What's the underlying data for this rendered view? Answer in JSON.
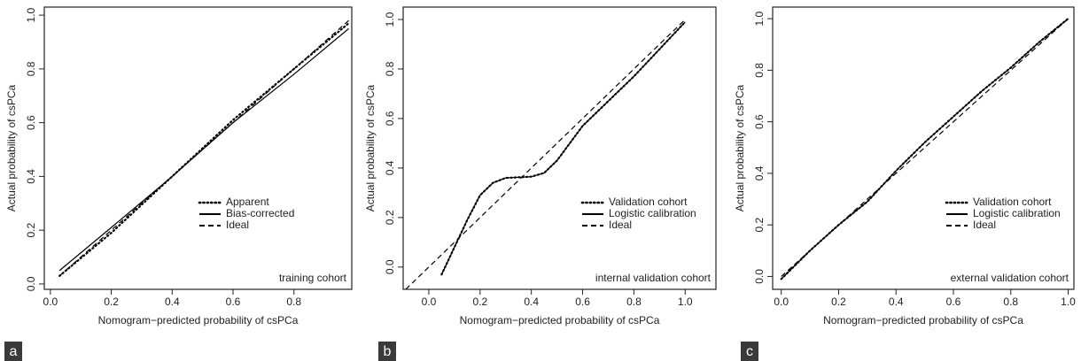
{
  "chart_data": [
    {
      "type": "line",
      "panel_label": "a",
      "annotation": "training cohort",
      "x_label": "Nomogram−predicted probability of csPCa",
      "y_label": "Actual probability of csPCa",
      "xlim": [
        -0.02,
        0.99
      ],
      "ylim": [
        -0.02,
        1.03
      ],
      "xticks": [
        {
          "value": 0,
          "label": "0.0"
        },
        {
          "value": 0.2,
          "label": "0.2"
        },
        {
          "value": 0.4,
          "label": "0.4"
        },
        {
          "value": 0.6,
          "label": "0.6"
        },
        {
          "value": 0.8,
          "label": "0.8"
        }
      ],
      "yticks": [
        {
          "value": 0,
          "label": "0.0"
        },
        {
          "value": 0.2,
          "label": "0.2"
        },
        {
          "value": 0.4,
          "label": "0.4"
        },
        {
          "value": 0.6,
          "label": "0.6"
        },
        {
          "value": 0.8,
          "label": "0.8"
        },
        {
          "value": 1,
          "label": "1.0"
        }
      ],
      "series": [
        {
          "name": "Apparent",
          "color": "#000000",
          "linestyle": "dotted",
          "x": [
            0.03,
            0.2,
            0.4,
            0.6,
            0.8,
            0.98
          ],
          "values": [
            0.03,
            0.19,
            0.4,
            0.61,
            0.8,
            0.97
          ]
        },
        {
          "name": "Bias-corrected",
          "color": "#000000",
          "linestyle": "solid",
          "x": [
            0.03,
            0.2,
            0.4,
            0.6,
            0.8,
            0.98
          ],
          "values": [
            0.05,
            0.21,
            0.4,
            0.6,
            0.78,
            0.95
          ]
        },
        {
          "name": "Ideal",
          "color": "#000000",
          "linestyle": "dashed",
          "x": [
            0.03,
            0.98
          ],
          "values": [
            0.03,
            0.98
          ]
        }
      ]
    },
    {
      "type": "line",
      "panel_label": "b",
      "annotation": "internal validation cohort",
      "x_label": "Nomogram−predicted probability of csPCa",
      "y_label": "Actual probability of csPCa",
      "xlim": [
        -0.1,
        1.12
      ],
      "ylim": [
        -0.09,
        1.05
      ],
      "xticks": [
        {
          "value": 0,
          "label": "0.0"
        },
        {
          "value": 0.2,
          "label": "0.2"
        },
        {
          "value": 0.4,
          "label": "0.4"
        },
        {
          "value": 0.6,
          "label": "0.6"
        },
        {
          "value": 0.8,
          "label": "0.8"
        },
        {
          "value": 1,
          "label": "1.0"
        }
      ],
      "yticks": [
        {
          "value": 0,
          "label": "0.0"
        },
        {
          "value": 0.2,
          "label": "0.2"
        },
        {
          "value": 0.4,
          "label": "0.4"
        },
        {
          "value": 0.6,
          "label": "0.6"
        },
        {
          "value": 0.8,
          "label": "0.8"
        },
        {
          "value": 1,
          "label": "1.0"
        }
      ],
      "series": [
        {
          "name": "Validation cohort",
          "color": "#000000",
          "linestyle": "dotted",
          "x": [
            0.05,
            0.1,
            0.15,
            0.2,
            0.25,
            0.3,
            0.4,
            0.45,
            0.5,
            0.55,
            0.6,
            0.7,
            0.8,
            0.9,
            1.0
          ],
          "values": [
            -0.03,
            0.08,
            0.19,
            0.29,
            0.34,
            0.36,
            0.365,
            0.38,
            0.43,
            0.5,
            0.57,
            0.67,
            0.77,
            0.88,
            0.99
          ]
        },
        {
          "name": "Logistic calibration",
          "color": "#000000",
          "linestyle": "solid",
          "x": [
            0.05,
            0.1,
            0.15,
            0.2,
            0.25,
            0.3,
            0.4,
            0.45,
            0.5,
            0.55,
            0.6,
            0.7,
            0.8,
            0.9,
            1.0
          ],
          "values": [
            -0.03,
            0.08,
            0.19,
            0.29,
            0.34,
            0.36,
            0.365,
            0.38,
            0.43,
            0.5,
            0.57,
            0.67,
            0.77,
            0.88,
            0.99
          ]
        },
        {
          "name": "Ideal",
          "color": "#000000",
          "linestyle": "dashed",
          "x": [
            -0.09,
            1.0
          ],
          "values": [
            -0.09,
            1.0
          ]
        }
      ]
    },
    {
      "type": "line",
      "panel_label": "c",
      "annotation": "external validation cohort",
      "x_label": "Nomogram−predicted probability of csPCa",
      "y_label": "Actual probability of csPCa",
      "xlim": [
        -0.03,
        1.02
      ],
      "ylim": [
        -0.05,
        1.045
      ],
      "xticks": [
        {
          "value": 0,
          "label": "0.0"
        },
        {
          "value": 0.2,
          "label": "0.2"
        },
        {
          "value": 0.4,
          "label": "0.4"
        },
        {
          "value": 0.6,
          "label": "0.6"
        },
        {
          "value": 0.8,
          "label": "0.8"
        },
        {
          "value": 1,
          "label": "1.0"
        }
      ],
      "yticks": [
        {
          "value": 0,
          "label": "0.0"
        },
        {
          "value": 0.2,
          "label": "0.2"
        },
        {
          "value": 0.4,
          "label": "0.4"
        },
        {
          "value": 0.6,
          "label": "0.6"
        },
        {
          "value": 0.8,
          "label": "0.8"
        },
        {
          "value": 1,
          "label": "1.0"
        }
      ],
      "series": [
        {
          "name": "Validation cohort",
          "color": "#000000",
          "linestyle": "dotted",
          "x": [
            0,
            0.1,
            0.2,
            0.3,
            0.4,
            0.5,
            0.6,
            0.7,
            0.8,
            0.9,
            1.0
          ],
          "values": [
            -0.01,
            0.1,
            0.2,
            0.29,
            0.41,
            0.52,
            0.62,
            0.72,
            0.81,
            0.91,
            1.0
          ]
        },
        {
          "name": "Logistic calibration",
          "color": "#000000",
          "linestyle": "solid",
          "x": [
            0,
            0.1,
            0.2,
            0.3,
            0.4,
            0.5,
            0.6,
            0.7,
            0.8,
            0.9,
            1.0
          ],
          "values": [
            -0.01,
            0.1,
            0.2,
            0.29,
            0.41,
            0.52,
            0.62,
            0.72,
            0.81,
            0.91,
            1.0
          ]
        },
        {
          "name": "Ideal",
          "color": "#000000",
          "linestyle": "dashed",
          "x": [
            0,
            1.0
          ],
          "values": [
            0,
            1.0
          ]
        }
      ]
    }
  ]
}
